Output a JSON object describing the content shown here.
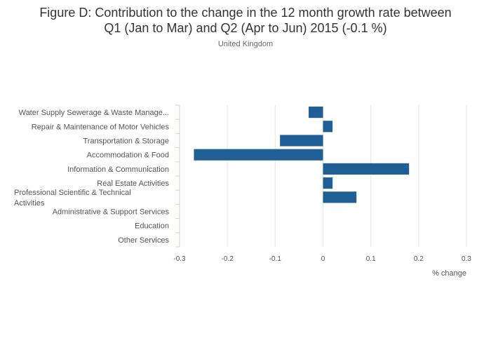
{
  "chart_data": {
    "type": "bar",
    "orientation": "horizontal",
    "title_line1": "Figure D: Contribution to the change in the 12 month growth rate between",
    "title_line2": "Q1 (Jan to Mar) and Q2 (Apr to Jun) 2015 (-0.1 %)",
    "subtitle": "United Kingdom",
    "xlabel": "% change",
    "ylabel": "",
    "xlim": [
      -0.3,
      0.3
    ],
    "x_ticks": [
      "-0.3",
      "-0.2",
      "-0.1",
      "0",
      "0.1",
      "0.2",
      "0.3"
    ],
    "x_tick_values": [
      -0.3,
      -0.2,
      -0.1,
      0,
      0.1,
      0.2,
      0.3
    ],
    "grid": "vertical",
    "colors": {
      "bar": "#1f5f96",
      "grid": "#e6e6e6",
      "axis": "#c9d6e3"
    },
    "categories": [
      [
        "Water Supply Sewerage & Waste Manage..."
      ],
      [
        "Repair & Maintenance of Motor Vehicles"
      ],
      [
        "Transportation & Storage"
      ],
      [
        "Accommodation & Food"
      ],
      [
        "Information & Communication"
      ],
      [
        "Real Estate Activities"
      ],
      [
        "Professional Scientific & Technical",
        "Activities"
      ],
      [
        "Administrative & Support Services"
      ],
      [
        "Education"
      ],
      [
        "Other Services"
      ]
    ],
    "values": [
      -0.03,
      0.02,
      -0.09,
      -0.27,
      0.18,
      0.02,
      0.07,
      0,
      0,
      0
    ]
  }
}
